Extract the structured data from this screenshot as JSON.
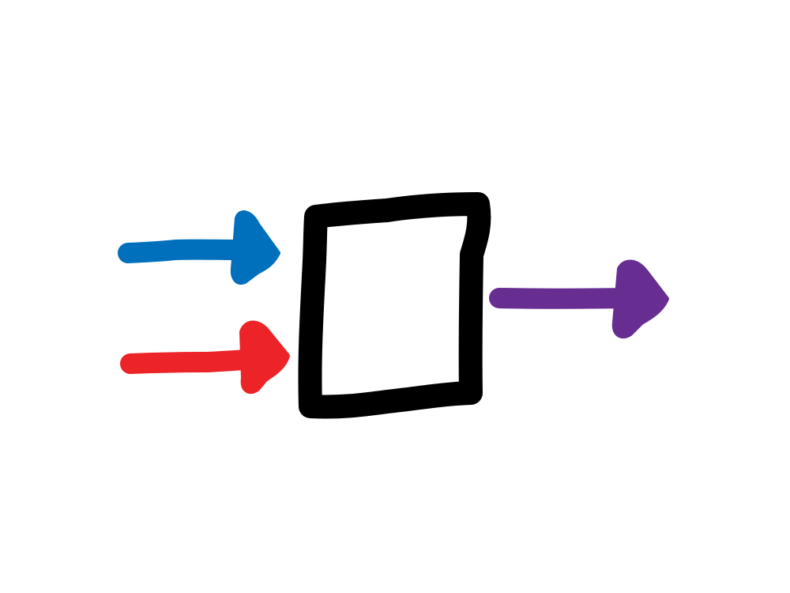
{
  "diagram": {
    "background": "#ffffff",
    "box": {
      "label": "",
      "outline_color": "#000000"
    },
    "inputs": [
      {
        "label": "",
        "color": "#0070BD"
      },
      {
        "label": "",
        "color": "#EC2327"
      }
    ],
    "output": {
      "label": "",
      "color": "#672D91"
    }
  }
}
